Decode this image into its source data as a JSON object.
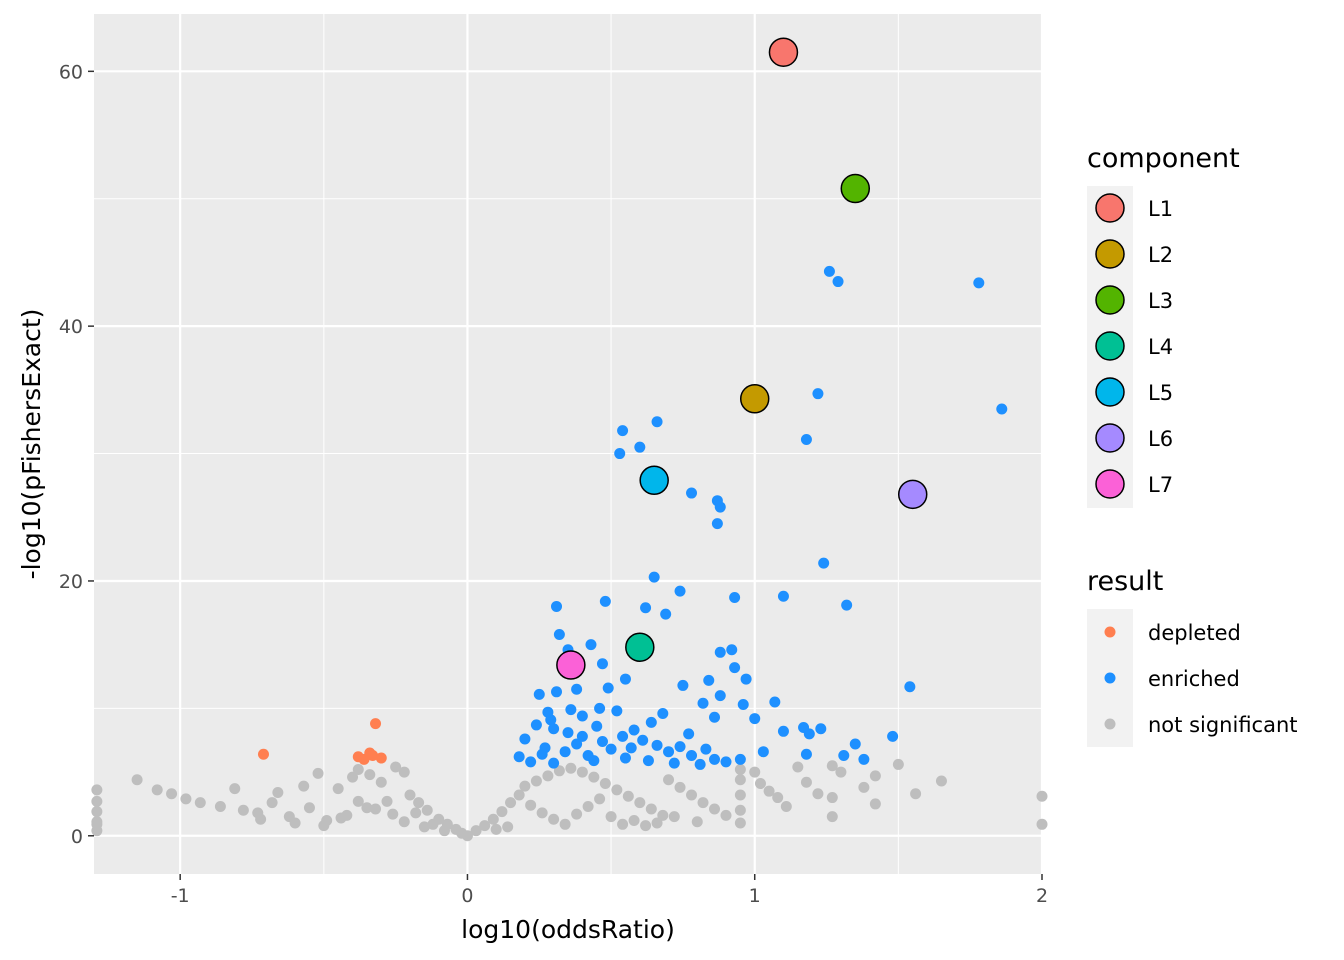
{
  "chart_data": {
    "type": "scatter",
    "xlabel": "log10(oddsRatio)",
    "ylabel": "-log10(pFishersExact)",
    "xlim": [
      -1.3,
      2.0
    ],
    "ylim": [
      -3.0,
      64.5
    ],
    "x_ticks": [
      -1,
      0,
      1,
      2
    ],
    "y_ticks": [
      0,
      20,
      40,
      60
    ],
    "x_tick_labels": [
      "-1",
      "0",
      "1",
      "2"
    ],
    "y_tick_labels": [
      "0",
      "20",
      "40",
      "60"
    ],
    "grid": true,
    "panel_background": "#ebebeb",
    "legend_position": "right",
    "legends": [
      {
        "title": "component",
        "entries": [
          {
            "label": "L1",
            "color": "#F8766D"
          },
          {
            "label": "L2",
            "color": "#C49A00"
          },
          {
            "label": "L3",
            "color": "#53B400"
          },
          {
            "label": "L4",
            "color": "#00C094"
          },
          {
            "label": "L5",
            "color": "#00B6EB"
          },
          {
            "label": "L6",
            "color": "#A58AFF"
          },
          {
            "label": "L7",
            "color": "#FB61D7"
          }
        ]
      },
      {
        "title": "result",
        "entries": [
          {
            "label": "depleted",
            "color": "#FF7F50"
          },
          {
            "label": "enriched",
            "color": "#1E90FF"
          },
          {
            "label": "not significant",
            "color": "#BEBEBE"
          }
        ]
      }
    ],
    "components": [
      {
        "name": "L1",
        "x": 1.1,
        "y": 61.5
      },
      {
        "name": "L2",
        "x": 1.0,
        "y": 34.3
      },
      {
        "name": "L3",
        "x": 1.35,
        "y": 50.8
      },
      {
        "name": "L4",
        "x": 0.6,
        "y": 14.8
      },
      {
        "name": "L5",
        "x": 0.65,
        "y": 27.9
      },
      {
        "name": "L6",
        "x": 1.55,
        "y": 26.8
      },
      {
        "name": "L7",
        "x": 0.36,
        "y": 13.4
      }
    ],
    "series": [
      {
        "name": "depleted",
        "points": [
          [
            -0.71,
            6.4
          ],
          [
            -0.32,
            8.8
          ],
          [
            -0.38,
            6.2
          ],
          [
            -0.34,
            6.5
          ],
          [
            -0.33,
            6.3
          ],
          [
            -0.3,
            6.1
          ],
          [
            -0.36,
            6.0
          ]
        ]
      },
      {
        "name": "enriched",
        "points": [
          [
            1.26,
            44.3
          ],
          [
            1.29,
            43.5
          ],
          [
            1.78,
            43.4
          ],
          [
            1.22,
            34.7
          ],
          [
            1.86,
            33.5
          ],
          [
            0.66,
            32.5
          ],
          [
            0.54,
            31.8
          ],
          [
            0.6,
            30.5
          ],
          [
            0.53,
            30.0
          ],
          [
            1.18,
            31.1
          ],
          [
            0.78,
            26.9
          ],
          [
            0.87,
            26.3
          ],
          [
            0.88,
            25.8
          ],
          [
            0.87,
            24.5
          ],
          [
            1.24,
            21.4
          ],
          [
            0.65,
            20.3
          ],
          [
            0.74,
            19.2
          ],
          [
            0.93,
            18.7
          ],
          [
            1.1,
            18.8
          ],
          [
            1.32,
            18.1
          ],
          [
            0.48,
            18.4
          ],
          [
            0.31,
            18.0
          ],
          [
            0.62,
            17.9
          ],
          [
            0.69,
            17.4
          ],
          [
            0.32,
            15.8
          ],
          [
            0.43,
            15.0
          ],
          [
            0.35,
            14.6
          ],
          [
            0.92,
            14.6
          ],
          [
            0.88,
            14.4
          ],
          [
            0.93,
            13.2
          ],
          [
            0.47,
            13.5
          ],
          [
            0.55,
            12.3
          ],
          [
            0.84,
            12.2
          ],
          [
            0.97,
            12.3
          ],
          [
            0.75,
            11.8
          ],
          [
            1.54,
            11.7
          ],
          [
            0.38,
            11.5
          ],
          [
            0.49,
            11.6
          ],
          [
            0.31,
            11.3
          ],
          [
            0.25,
            11.1
          ],
          [
            0.88,
            11.0
          ],
          [
            0.82,
            10.4
          ],
          [
            0.96,
            10.3
          ],
          [
            1.07,
            10.5
          ],
          [
            0.46,
            10.0
          ],
          [
            0.52,
            9.8
          ],
          [
            0.36,
            9.9
          ],
          [
            0.28,
            9.7
          ],
          [
            0.68,
            9.6
          ],
          [
            0.86,
            9.3
          ],
          [
            1.0,
            9.2
          ],
          [
            1.17,
            8.5
          ],
          [
            1.23,
            8.4
          ],
          [
            1.1,
            8.2
          ],
          [
            1.19,
            8.0
          ],
          [
            0.58,
            8.3
          ],
          [
            0.64,
            8.9
          ],
          [
            0.24,
            8.7
          ],
          [
            0.3,
            8.4
          ],
          [
            0.4,
            7.8
          ],
          [
            0.2,
            7.6
          ],
          [
            1.48,
            7.8
          ],
          [
            1.35,
            7.2
          ],
          [
            0.74,
            7.0
          ],
          [
            0.83,
            6.8
          ],
          [
            1.03,
            6.6
          ],
          [
            1.31,
            6.3
          ],
          [
            1.38,
            6.0
          ],
          [
            1.18,
            6.4
          ],
          [
            0.95,
            6.0
          ],
          [
            0.18,
            6.2
          ],
          [
            0.26,
            6.4
          ],
          [
            0.34,
            6.6
          ],
          [
            0.42,
            6.3
          ],
          [
            0.5,
            6.8
          ],
          [
            0.57,
            6.9
          ],
          [
            0.7,
            6.6
          ],
          [
            0.78,
            6.3
          ],
          [
            0.86,
            6.0
          ],
          [
            0.9,
            5.8
          ],
          [
            0.22,
            5.8
          ],
          [
            0.3,
            5.7
          ],
          [
            0.44,
            5.9
          ],
          [
            0.55,
            6.1
          ],
          [
            0.63,
            5.9
          ],
          [
            0.72,
            5.7
          ],
          [
            0.81,
            5.6
          ],
          [
            0.38,
            7.2
          ],
          [
            0.47,
            7.4
          ],
          [
            0.61,
            7.5
          ],
          [
            0.66,
            7.1
          ],
          [
            0.27,
            6.9
          ],
          [
            0.35,
            8.1
          ],
          [
            0.45,
            8.6
          ],
          [
            0.54,
            7.8
          ],
          [
            0.77,
            8.0
          ],
          [
            0.29,
            9.1
          ],
          [
            0.4,
            9.4
          ]
        ]
      },
      {
        "name": "not significant",
        "points": [
          [
            -1.15,
            4.4
          ],
          [
            -1.08,
            3.6
          ],
          [
            -1.03,
            3.3
          ],
          [
            -0.98,
            2.9
          ],
          [
            -0.93,
            2.6
          ],
          [
            -0.86,
            2.3
          ],
          [
            -0.81,
            3.7
          ],
          [
            -0.78,
            2.0
          ],
          [
            -0.73,
            1.8
          ],
          [
            -0.66,
            3.4
          ],
          [
            -0.62,
            1.5
          ],
          [
            -0.57,
            3.9
          ],
          [
            -0.52,
            4.9
          ],
          [
            -0.49,
            1.2
          ],
          [
            -0.45,
            3.7
          ],
          [
            -0.4,
            4.6
          ],
          [
            -0.38,
            5.2
          ],
          [
            -0.34,
            4.8
          ],
          [
            -0.3,
            4.2
          ],
          [
            -0.25,
            5.4
          ],
          [
            -0.22,
            5.0
          ],
          [
            -0.2,
            3.2
          ],
          [
            -0.17,
            2.6
          ],
          [
            -0.14,
            2.0
          ],
          [
            -0.1,
            1.3
          ],
          [
            -0.07,
            0.9
          ],
          [
            -0.04,
            0.5
          ],
          [
            -0.02,
            0.2
          ],
          [
            0.0,
            0.0
          ],
          [
            -1.29,
            3.6
          ],
          [
            -1.29,
            2.7
          ],
          [
            -1.29,
            1.9
          ],
          [
            -1.29,
            1.1
          ],
          [
            -1.29,
            0.4
          ],
          [
            -0.6,
            1.0
          ],
          [
            -0.5,
            0.8
          ],
          [
            -0.42,
            1.6
          ],
          [
            -0.35,
            2.2
          ],
          [
            -0.28,
            2.7
          ],
          [
            -0.18,
            1.8
          ],
          [
            -0.12,
            0.9
          ],
          [
            0.03,
            0.4
          ],
          [
            0.06,
            0.8
          ],
          [
            0.09,
            1.3
          ],
          [
            0.12,
            1.9
          ],
          [
            0.15,
            2.6
          ],
          [
            0.18,
            3.2
          ],
          [
            0.2,
            3.9
          ],
          [
            0.24,
            4.3
          ],
          [
            0.28,
            4.7
          ],
          [
            0.32,
            5.1
          ],
          [
            0.36,
            5.3
          ],
          [
            0.4,
            5.0
          ],
          [
            0.44,
            4.6
          ],
          [
            0.48,
            4.1
          ],
          [
            0.52,
            3.6
          ],
          [
            0.56,
            3.1
          ],
          [
            0.6,
            2.6
          ],
          [
            0.64,
            2.1
          ],
          [
            0.68,
            1.6
          ],
          [
            0.7,
            4.4
          ],
          [
            0.74,
            3.8
          ],
          [
            0.78,
            3.2
          ],
          [
            0.82,
            2.6
          ],
          [
            0.86,
            2.1
          ],
          [
            0.9,
            1.6
          ],
          [
            0.22,
            2.4
          ],
          [
            0.26,
            1.8
          ],
          [
            0.3,
            1.3
          ],
          [
            0.34,
            0.9
          ],
          [
            0.38,
            1.7
          ],
          [
            0.42,
            2.3
          ],
          [
            0.46,
            2.9
          ],
          [
            0.5,
            1.5
          ],
          [
            0.54,
            0.9
          ],
          [
            0.58,
            1.2
          ],
          [
            0.62,
            0.8
          ],
          [
            0.66,
            1.0
          ],
          [
            0.72,
            1.5
          ],
          [
            0.8,
            1.1
          ],
          [
            0.95,
            2.0
          ],
          [
            0.95,
            3.2
          ],
          [
            0.95,
            4.4
          ],
          [
            0.95,
            1.0
          ],
          [
            0.95,
            5.2
          ],
          [
            1.0,
            5.0
          ],
          [
            1.02,
            4.1
          ],
          [
            1.05,
            3.5
          ],
          [
            1.08,
            3.0
          ],
          [
            1.11,
            2.3
          ],
          [
            1.15,
            5.4
          ],
          [
            1.18,
            4.2
          ],
          [
            1.22,
            3.3
          ],
          [
            1.27,
            5.5
          ],
          [
            1.27,
            3.0
          ],
          [
            1.27,
            1.5
          ],
          [
            1.3,
            5.0
          ],
          [
            1.38,
            3.8
          ],
          [
            1.42,
            4.7
          ],
          [
            1.42,
            2.5
          ],
          [
            1.5,
            5.6
          ],
          [
            1.56,
            3.3
          ],
          [
            1.65,
            4.3
          ],
          [
            2.0,
            3.1
          ],
          [
            2.0,
            0.9
          ],
          [
            -1.29,
            0.9
          ],
          [
            0.1,
            0.5
          ],
          [
            0.14,
            0.7
          ],
          [
            -0.08,
            0.4
          ],
          [
            -0.15,
            0.7
          ],
          [
            -0.22,
            1.1
          ],
          [
            -0.26,
            1.7
          ],
          [
            -0.32,
            2.1
          ],
          [
            -0.38,
            2.7
          ],
          [
            -0.44,
            1.4
          ],
          [
            -0.55,
            2.2
          ],
          [
            -0.68,
            2.6
          ],
          [
            -0.72,
            1.3
          ]
        ]
      }
    ]
  }
}
